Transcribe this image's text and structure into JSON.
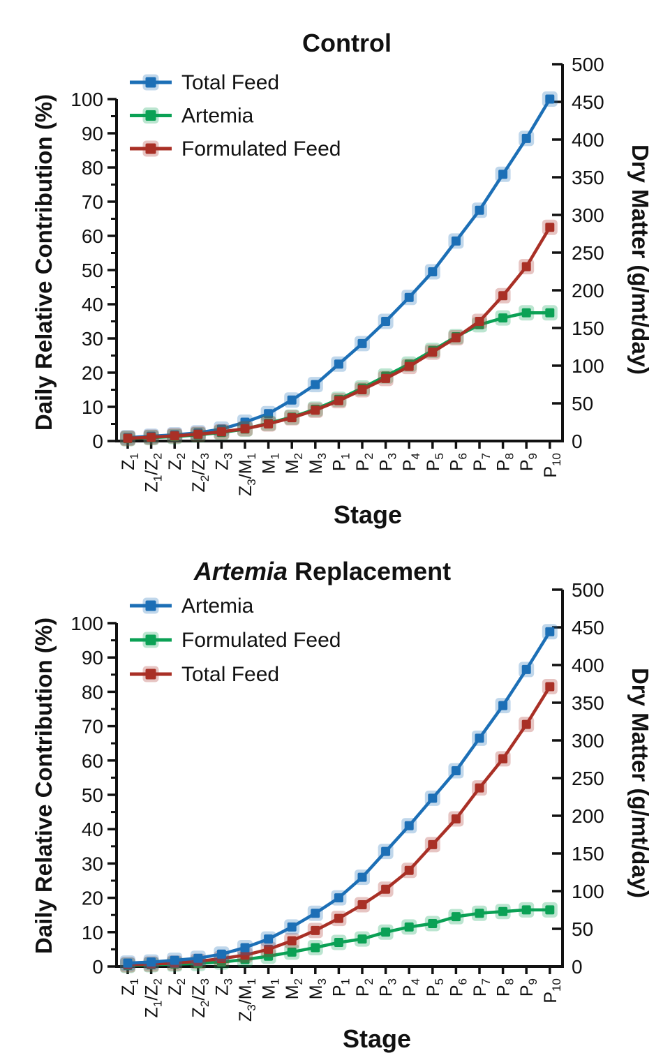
{
  "figure": {
    "background": "#ffffff"
  },
  "chart_data": [
    {
      "type": "line",
      "title_segments": [
        {
          "text": "Control",
          "italic": false
        }
      ],
      "xlabel": "Stage",
      "left_ylabel": "Daily Relative Contribution (%)",
      "right_ylabel": "Dry Matter (g/mt/day)",
      "left_ylim": [
        0,
        100
      ],
      "right_ylim": [
        0,
        500
      ],
      "left_ticks": [
        0,
        10,
        20,
        30,
        40,
        50,
        60,
        70,
        80,
        90,
        100
      ],
      "left_minor_ticks": [
        5,
        15,
        25,
        35,
        45,
        55,
        65,
        75,
        85,
        95
      ],
      "right_ticks": [
        0,
        50,
        100,
        150,
        200,
        250,
        300,
        350,
        400,
        450,
        500
      ],
      "categories": [
        "Z_1",
        "Z_1/Z_2",
        "Z_2",
        "Z_2/Z_3",
        "Z_3",
        "Z_3/M_1",
        "M_1",
        "M_2",
        "M_3",
        "P_1",
        "P_2",
        "P_3",
        "P_4",
        "P_5",
        "P_6",
        "P_7",
        "P_8",
        "P_9",
        "P_10"
      ],
      "legend_position": "upper-left",
      "grid": false,
      "series": [
        {
          "name": "Total Feed",
          "color": "#1c6fb6",
          "values_percent": [
            1.0,
            1.4,
            1.8,
            2.4,
            3.5,
            5.5,
            8.0,
            12.0,
            16.5,
            22.5,
            28.5,
            35.0,
            42.0,
            49.5,
            58.5,
            67.5,
            78.0,
            88.5,
            100.0
          ]
        },
        {
          "name": "Artemia",
          "color": "#0ba155",
          "values_percent": [
            0.7,
            1.0,
            1.3,
            1.8,
            2.5,
            3.5,
            5.2,
            7.0,
            9.3,
            12.2,
            15.5,
            19.0,
            22.5,
            26.5,
            30.5,
            34.0,
            36.0,
            37.5,
            37.5
          ]
        },
        {
          "name": "Formulated Feed",
          "color": "#a93026",
          "values_percent": [
            0.8,
            1.1,
            1.5,
            2.0,
            2.7,
            3.6,
            5.0,
            6.8,
            9.0,
            11.8,
            15.0,
            18.3,
            21.8,
            26.0,
            30.2,
            35.0,
            42.5,
            51.0,
            62.5
          ]
        }
      ]
    },
    {
      "type": "line",
      "title_segments": [
        {
          "text": "Artemia",
          "italic": true
        },
        {
          "text": " Replacement",
          "italic": false
        }
      ],
      "xlabel": "Stage",
      "left_ylabel": "Daily Relative Contribution (%)",
      "right_ylabel": "Dry Matter (g/mt/day)",
      "left_ylim": [
        0,
        100
      ],
      "right_ylim": [
        0,
        500
      ],
      "left_ticks": [
        0,
        10,
        20,
        30,
        40,
        50,
        60,
        70,
        80,
        90,
        100
      ],
      "left_minor_ticks": [
        5,
        15,
        25,
        35,
        45,
        55,
        65,
        75,
        85,
        95
      ],
      "right_ticks": [
        0,
        50,
        100,
        150,
        200,
        250,
        300,
        350,
        400,
        450,
        500
      ],
      "categories": [
        "Z_1",
        "Z_1/Z_2",
        "Z_2",
        "Z_2/Z_3",
        "Z_3",
        "Z_3/M_1",
        "M_1",
        "M_2",
        "M_3",
        "P_1",
        "P_2",
        "P_3",
        "P_4",
        "P_5",
        "P_6",
        "P_7",
        "P_8",
        "P_9",
        "P_10"
      ],
      "legend_position": "upper-left",
      "grid": false,
      "series": [
        {
          "name": "Artemia",
          "color": "#1c6fb6",
          "values_percent": [
            1.0,
            1.3,
            1.8,
            2.4,
            3.6,
            5.5,
            8.0,
            11.5,
            15.5,
            20.0,
            26.0,
            33.5,
            41.0,
            49.0,
            57.0,
            66.5,
            76.0,
            86.5,
            97.5
          ]
        },
        {
          "name": "Formulated Feed",
          "color": "#0ba155",
          "values_percent": [
            0.3,
            0.5,
            0.7,
            0.9,
            1.3,
            2.0,
            3.0,
            4.2,
            5.5,
            7.0,
            8.0,
            10.0,
            11.5,
            12.5,
            14.5,
            15.5,
            16.0,
            16.5,
            16.5
          ]
        },
        {
          "name": "Total Feed",
          "color": "#a93026",
          "values_percent": [
            0.5,
            0.7,
            1.0,
            1.5,
            2.3,
            3.3,
            5.0,
            7.5,
            10.5,
            14.0,
            18.0,
            22.5,
            28.0,
            35.5,
            43.0,
            52.0,
            60.5,
            70.5,
            81.5
          ]
        }
      ]
    }
  ]
}
